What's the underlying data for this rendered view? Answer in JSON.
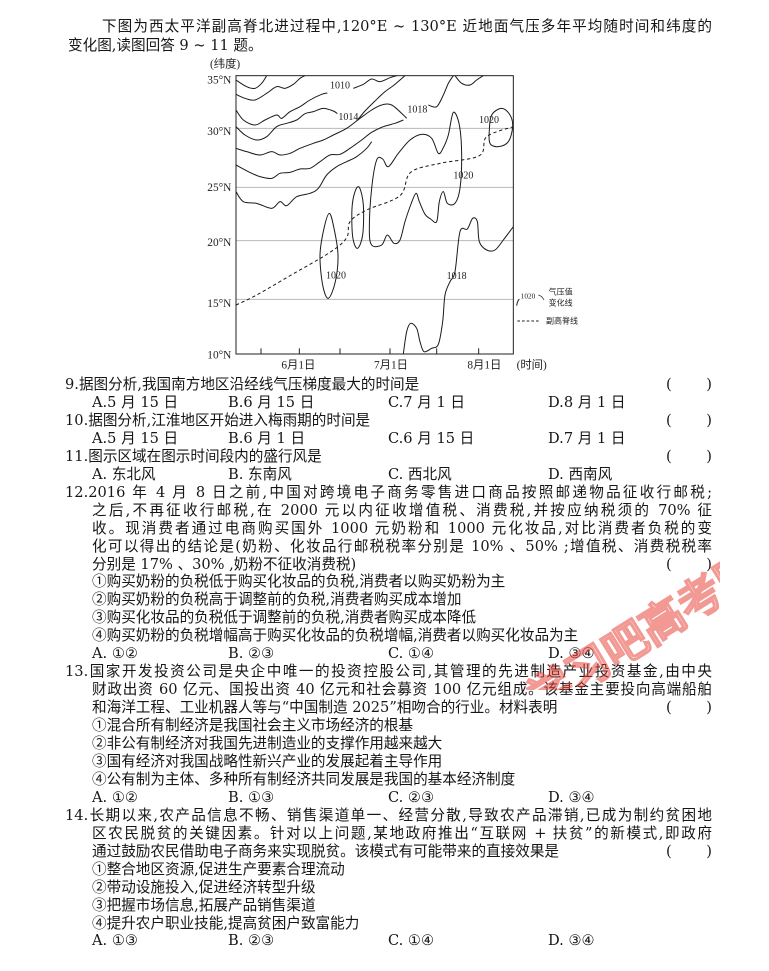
{
  "intro_lines": [
    "下图为西太平洋副高脊北进过程中,120°E ~ 130°E 近地面气压多年平均随时间和纬度的",
    "变化图,读图回答 9 ~ 11 题。"
  ],
  "diagram": {
    "ylabel": "(纬度)",
    "yticks": [
      "35°N",
      "30°N",
      "25°N",
      "20°N",
      "15°N",
      "10°N"
    ],
    "xticks": [
      "6月1日",
      "7月1日",
      "8月1日"
    ],
    "xlabel": "(时间)",
    "isobar_labels": [
      "1010",
      "1014",
      "1018",
      "1020",
      "1020",
      "1020",
      "1018"
    ],
    "legend": {
      "sample_value": "1020",
      "isobar_label_1": "气压值",
      "isobar_label_2": "变化线",
      "ridge_label": "副高脊线"
    }
  },
  "paren": [
    "(",
    ")"
  ],
  "questions": [
    {
      "number": "9.",
      "stem": [
        "据图分析,我国南方地区沿经线气压梯度最大的时间是"
      ],
      "statements": [],
      "options": [
        "A.5 月 15 日",
        "B.6 月 15 日",
        "C.7 月 1 日",
        "D.8 月 1 日"
      ]
    },
    {
      "number": "10.",
      "stem": [
        "据图分析,江淮地区开始进入梅雨期的时间是"
      ],
      "statements": [],
      "options": [
        "A.5 月 15 日",
        "B.6 月 1 日",
        "C.6 月 15 日",
        "D.7 月 1 日"
      ]
    },
    {
      "number": "11.",
      "stem": [
        "图示区域在图示时间段内的盛行风是"
      ],
      "statements": [],
      "options": [
        "A. 东北风",
        "B. 东南风",
        "C. 西北风",
        "D. 西南风"
      ]
    },
    {
      "number": "12.",
      "stem": [
        "2016 年 4 月 8 日之前,中国对跨境电子商务零售进口商品按照邮递物品征收行邮税;",
        "之后,不再征收行邮税,在 2000 元以内征收增值税、消费税,并按应纳税须的 70% 征",
        "收。现消费者通过电商购买国外 1000 元奶粉和 1000 元化妆品,对比消费者负税的变",
        "化可以得出的结论是(奶粉、化妆品行邮税税率分别是 10% 、50% ;增值税、消费税税率",
        "分别是 17% 、30% ,奶粉不征收消费税)"
      ],
      "statements": [
        "①购买奶粉的负税低于购买化妆品的负税,消费者以购买奶粉为主",
        "②购买奶粉的负税高于调整前的负税,消费者购买成本增加",
        "③购买化妆品的负税低于调整前的负税,消费者购买成本降低",
        "④购买奶粉的负税增幅高于购买化妆品的负税增幅,消费者以购买化妆品为主"
      ],
      "options": [
        "A. ①②",
        "B. ②③",
        "C. ①④",
        "D. ③④"
      ]
    },
    {
      "number": "13.",
      "stem": [
        "国家开发投资公司是央企中唯一的投资控股公司,其管理的先进制造产业投资基金,由中央",
        "财政出资 60 亿元、国投出资 40 亿元和社会募资 100 亿元组成。该基金主要投向高端船舶",
        "和海洋工程、工业机器人等与“中国制造 2025”相吻合的行业。材料表明"
      ],
      "statements": [
        "①混合所有制经济是我国社会主义市场经济的根基",
        "②非公有制经济对我国先进制造业的支撑作用越来越大",
        "③国有经济对我国战略性新兴产业的发展起着主导作用",
        "④公有制为主体、多种所有制经济共同发展是我国的基本经济制度"
      ],
      "options": [
        "A. ①②",
        "B. ①③",
        "C. ②③",
        "D. ③④"
      ]
    },
    {
      "number": "14.",
      "stem": [
        "长期以来,农产品信息不畅、销售渠道单一、经营分散,导致农产品滞销,已成为制约贫困地",
        "区农民脱贫的关键因素。针对以上问题,某地政府推出“互联网 + 扶贫”的新模式,即政府",
        "通过鼓励农民借助电子商务来实现脱贫。该模式有可能带来的直接效果是"
      ],
      "statements": [
        "①整合地区资源,促进生产要素合理流动",
        "②带动设施投入,促进经济转型升级",
        "③把握市场信息,拓展产品销售渠道",
        "④提升农户职业技能,提高贫困户致富能力"
      ],
      "options": [
        "A. ①③",
        "B. ②③",
        "C. ①④",
        "D. ③④"
      ]
    }
  ],
  "watermark": "学习吧高考网",
  "colors": {
    "text": "#161616",
    "gridline": "#b8b8b8",
    "watermark": "#e8453c"
  }
}
